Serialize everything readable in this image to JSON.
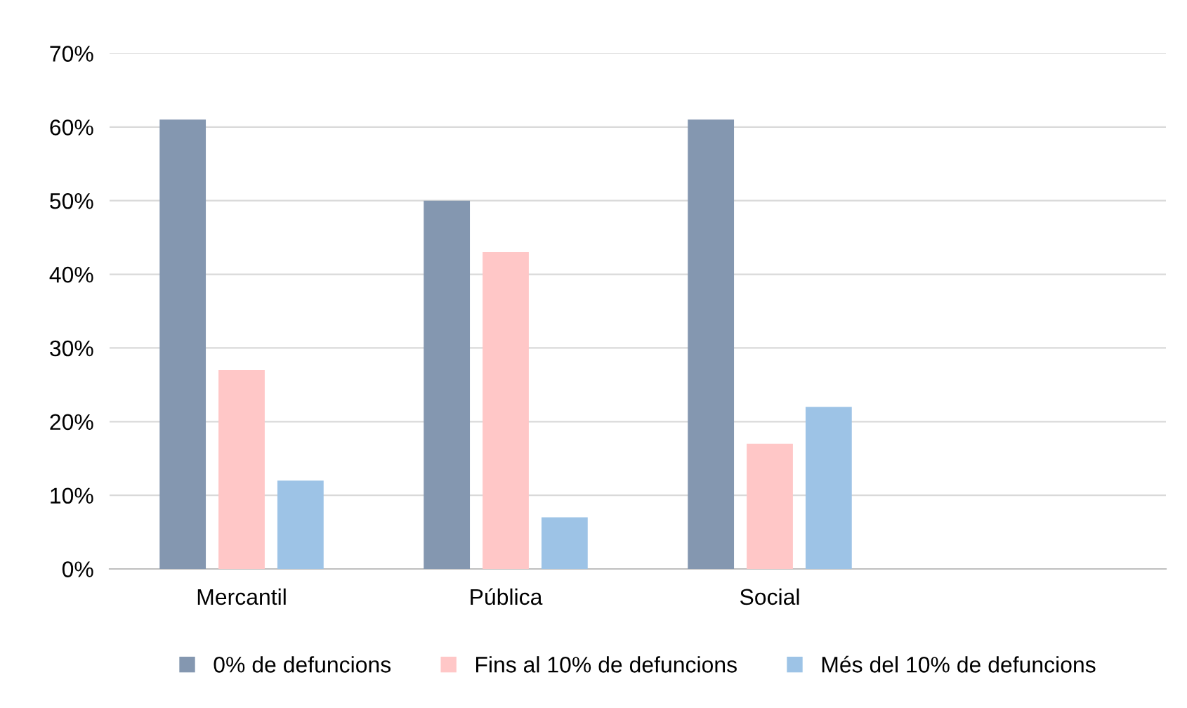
{
  "chart_data": {
    "type": "bar",
    "categories": [
      "Mercantil",
      "Pública",
      "Social",
      null
    ],
    "series": [
      {
        "name": "0% de defuncions",
        "color": "#8497b0",
        "values": [
          61,
          50,
          61,
          null
        ]
      },
      {
        "name": "Fins al 10% de defuncions",
        "color": "#ffc7c7",
        "values": [
          27,
          43,
          17,
          null
        ]
      },
      {
        "name": "Més del 10% de defuncions",
        "color": "#9dc3e6",
        "values": [
          12,
          7,
          22,
          null
        ]
      }
    ],
    "ylim": [
      0,
      70
    ],
    "yticks": [
      {
        "value": 0,
        "label": "0%"
      },
      {
        "value": 10,
        "label": "10%"
      },
      {
        "value": 20,
        "label": "20%"
      },
      {
        "value": 30,
        "label": "30%"
      },
      {
        "value": 40,
        "label": "40%"
      },
      {
        "value": 50,
        "label": "50%"
      },
      {
        "value": 60,
        "label": "60%"
      },
      {
        "value": 70,
        "label": "70%"
      }
    ],
    "grid": "y",
    "legend": "bottom"
  }
}
